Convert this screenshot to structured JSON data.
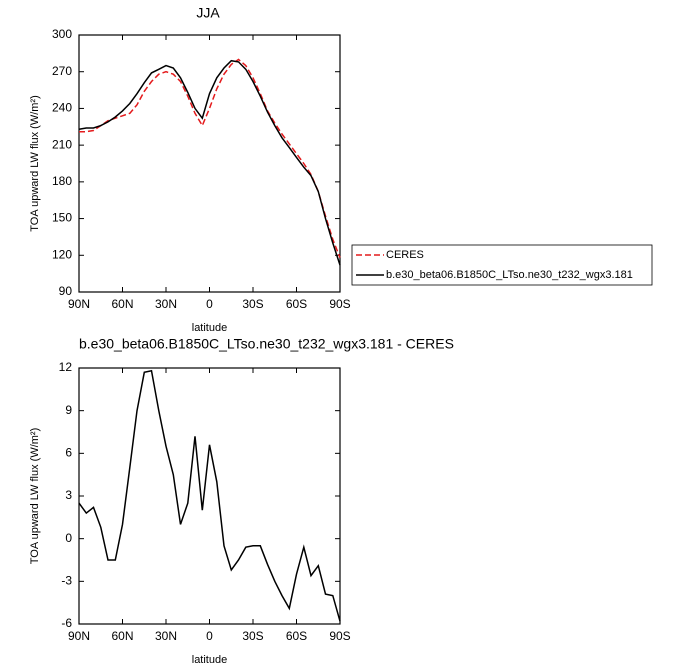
{
  "chart_data": [
    {
      "type": "line",
      "title": "JJA",
      "x_label": "latitude",
      "y_label": "TOA upward LW flux (W/m²)",
      "x": [
        90,
        85,
        80,
        75,
        70,
        65,
        60,
        55,
        50,
        45,
        40,
        35,
        30,
        25,
        20,
        15,
        10,
        5,
        0,
        -5,
        -10,
        -15,
        -20,
        -25,
        -30,
        -35,
        -40,
        -45,
        -50,
        -55,
        -60,
        -65,
        -70,
        -75,
        -80,
        -85,
        -90
      ],
      "series": [
        {
          "name": "CERES",
          "color": "#e41a1c",
          "linestyle": "dashed",
          "values": [
            221,
            221,
            222,
            226,
            230,
            232,
            234,
            236,
            243,
            254,
            262,
            268,
            270,
            268,
            262,
            250,
            236,
            226,
            240,
            256,
            268,
            276,
            280,
            275,
            265,
            252,
            238,
            228,
            219,
            211,
            203,
            195,
            186,
            172,
            152,
            133,
            118
          ]
        },
        {
          "name": "b.e30_beta06.B1850C_LTso.ne30_t232_wgx3.181",
          "color": "#000000",
          "linestyle": "solid",
          "values": [
            223,
            224,
            224,
            226,
            229,
            233,
            238,
            244,
            252,
            261,
            269,
            272,
            275,
            273,
            265,
            253,
            240,
            232,
            252,
            265,
            273,
            279,
            278,
            272,
            262,
            250,
            237,
            226,
            216,
            208,
            200,
            192,
            185,
            172,
            150,
            130,
            112
          ]
        }
      ],
      "xlim": [
        90,
        -90
      ],
      "xticks": [
        {
          "value": 90,
          "label": "90N"
        },
        {
          "value": 60,
          "label": "60N"
        },
        {
          "value": 30,
          "label": "30N"
        },
        0,
        {
          "value": -30,
          "label": "30S"
        },
        {
          "value": -60,
          "label": "60S"
        },
        {
          "value": -90,
          "label": "90S"
        }
      ],
      "ylim": [
        90,
        300
      ],
      "yticks": [
        90,
        120,
        150,
        180,
        210,
        240,
        270,
        300
      ],
      "legend": "right"
    },
    {
      "type": "line",
      "title": "b.e30_beta06.B1850C_LTso.ne30_t232_wgx3.181 - CERES",
      "x_label": "latitude",
      "y_label": "TOA upward LW flux (W/m²)",
      "x": [
        90,
        85,
        80,
        75,
        70,
        65,
        60,
        55,
        50,
        45,
        40,
        35,
        30,
        25,
        20,
        15,
        10,
        5,
        0,
        -5,
        -10,
        -15,
        -20,
        -25,
        -30,
        -35,
        -40,
        -45,
        -50,
        -55,
        -60,
        -65,
        -70,
        -75,
        -80,
        -85,
        -90
      ],
      "values": [
        2.5,
        1.8,
        2.2,
        0.8,
        -1.5,
        -1.5,
        1,
        5,
        9,
        11.7,
        11.8,
        9,
        6.5,
        4.5,
        1,
        2.5,
        7.2,
        2,
        6.6,
        4,
        -0.5,
        -2.2,
        -1.5,
        -0.6,
        -0.5,
        -0.5,
        -1.8,
        -3,
        -4,
        -4.9,
        -2.5,
        -0.6,
        -2.6,
        -1.9,
        -3.9,
        -4,
        -5.8
      ],
      "color": "#000000",
      "linestyle": "solid",
      "xlim": [
        90,
        -90
      ],
      "xticks": [
        {
          "value": 90,
          "label": "90N"
        },
        {
          "value": 60,
          "label": "60N"
        },
        {
          "value": 30,
          "label": "30N"
        },
        0,
        {
          "value": -30,
          "label": "30S"
        },
        {
          "value": -60,
          "label": "60S"
        },
        {
          "value": -90,
          "label": "90S"
        }
      ],
      "ylim": [
        -6,
        12
      ],
      "yticks": [
        -6,
        -3,
        0,
        3,
        6,
        9,
        12
      ]
    }
  ]
}
